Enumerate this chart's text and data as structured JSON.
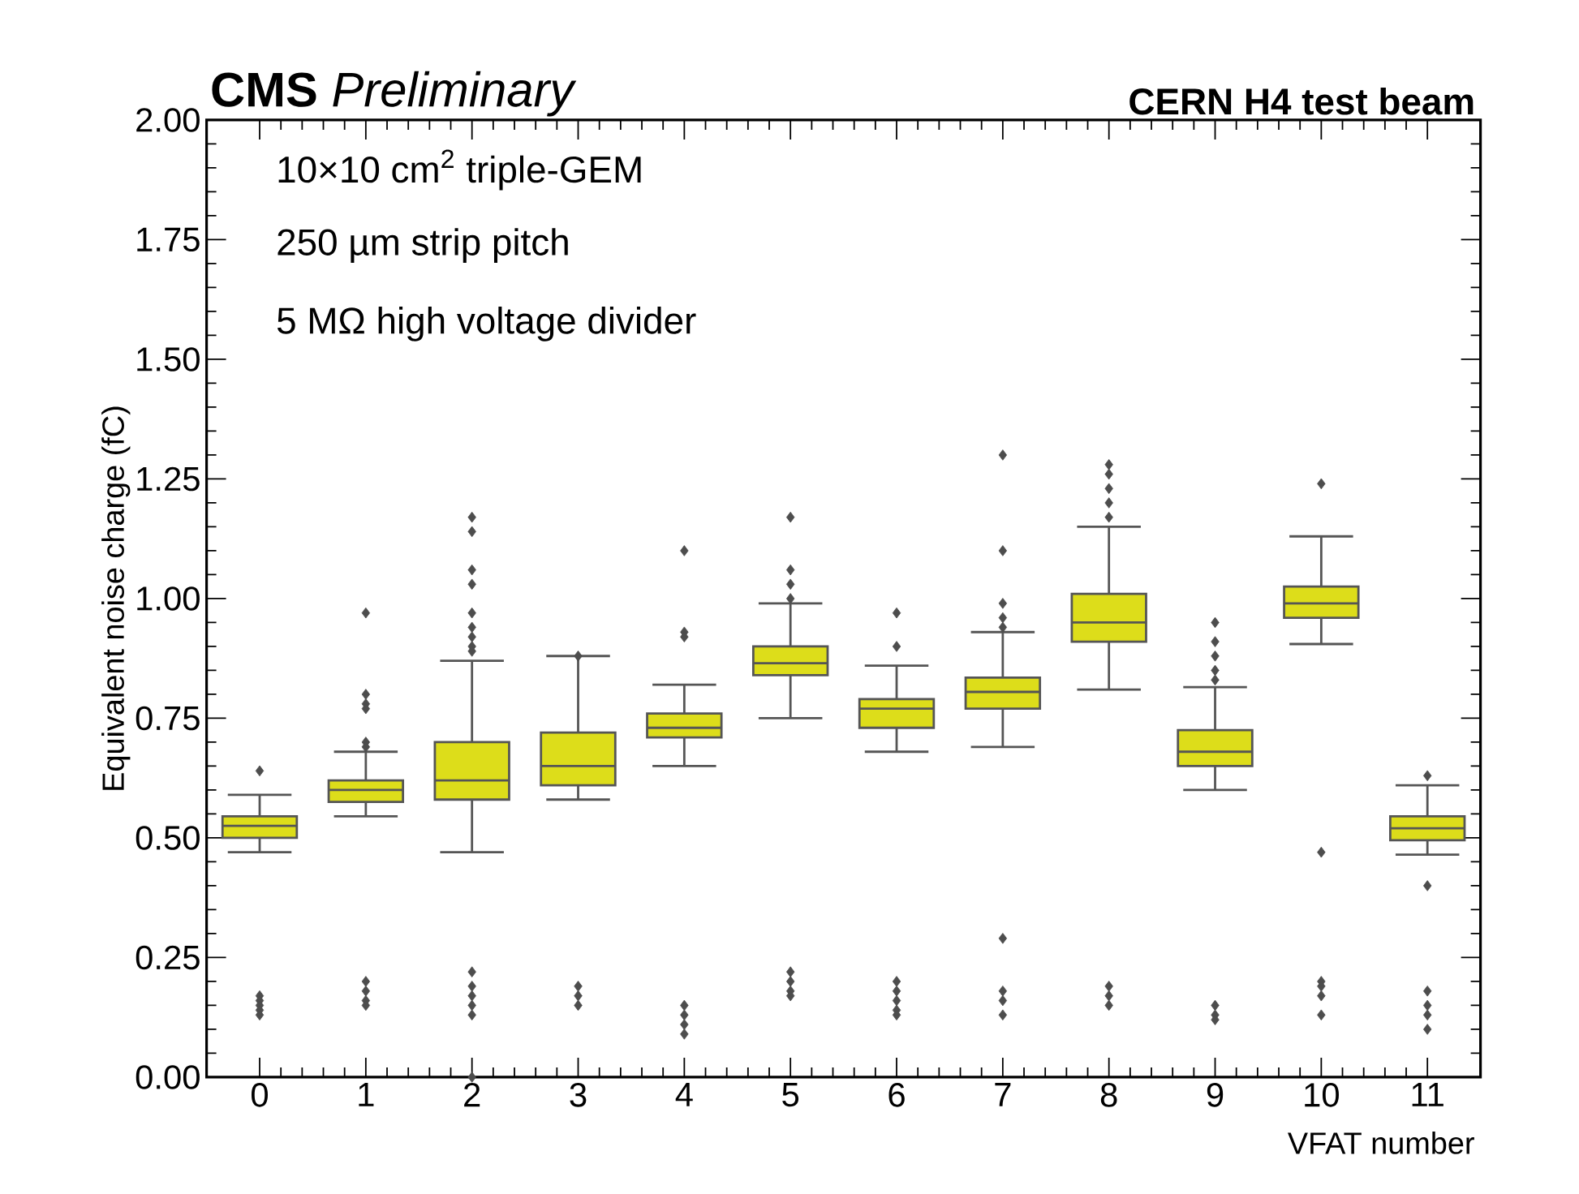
{
  "chart_data": {
    "type": "box",
    "title": "**CMS** *Preliminary*",
    "subtitle": "CERN H4 test beam",
    "xlabel": "VFAT number",
    "ylabel": "Equivalent noise charge (fC)",
    "annotations": [
      "10×10 cm$^{2}$ triple-GEM",
      "250 µm strip pitch",
      "5 MΩ high voltage divider"
    ],
    "categories": [
      "0",
      "1",
      "2",
      "3",
      "4",
      "5",
      "6",
      "7",
      "8",
      "9",
      "10",
      "11"
    ],
    "ylim": [
      0,
      2
    ],
    "yticks": [
      {
        "value": 0,
        "label": "0.00"
      },
      {
        "value": 0.25,
        "label": "0.25"
      },
      {
        "value": 0.5,
        "label": "0.50"
      },
      {
        "value": 0.75,
        "label": "0.75"
      },
      {
        "value": 1,
        "label": "1.00"
      },
      {
        "value": 1.25,
        "label": "1.25"
      },
      {
        "value": 1.5,
        "label": "1.50"
      },
      {
        "value": 1.75,
        "label": "1.75"
      },
      {
        "value": 2,
        "label": "2.00"
      }
    ],
    "marker": "diamond",
    "series": [
      {
        "color": "#dddd1a",
        "boxes": [
          {
            "low": 0.47,
            "q1": 0.5,
            "median": 0.525,
            "q3": 0.545,
            "high": 0.59,
            "outliers": [
              0.64,
              0.17,
              0.16,
              0.15,
              0.14,
              0.13
            ]
          },
          {
            "low": 0.545,
            "q1": 0.575,
            "median": 0.6,
            "q3": 0.62,
            "high": 0.68,
            "outliers": [
              0.97,
              0.8,
              0.78,
              0.77,
              0.7,
              0.69,
              0.2,
              0.18,
              0.16,
              0.15
            ]
          },
          {
            "low": 0.47,
            "q1": 0.58,
            "median": 0.62,
            "q3": 0.7,
            "high": 0.87,
            "outliers": [
              1.17,
              1.14,
              1.06,
              1.03,
              0.97,
              0.94,
              0.92,
              0.9,
              0.89,
              0.22,
              0.19,
              0.17,
              0.15,
              0.13,
              0.0
            ]
          },
          {
            "low": 0.58,
            "q1": 0.61,
            "median": 0.65,
            "q3": 0.72,
            "high": 0.88,
            "outliers": [
              0.88,
              0.19,
              0.17,
              0.15
            ]
          },
          {
            "low": 0.65,
            "q1": 0.71,
            "median": 0.73,
            "q3": 0.76,
            "high": 0.82,
            "outliers": [
              1.1,
              0.93,
              0.92,
              0.15,
              0.13,
              0.11,
              0.09
            ]
          },
          {
            "low": 0.75,
            "q1": 0.84,
            "median": 0.865,
            "q3": 0.9,
            "high": 0.99,
            "outliers": [
              1.17,
              1.06,
              1.03,
              1.0,
              0.22,
              0.2,
              0.18,
              0.17
            ]
          },
          {
            "low": 0.68,
            "q1": 0.73,
            "median": 0.77,
            "q3": 0.79,
            "high": 0.86,
            "outliers": [
              0.97,
              0.9,
              0.2,
              0.18,
              0.16,
              0.14,
              0.13
            ]
          },
          {
            "low": 0.69,
            "q1": 0.77,
            "median": 0.805,
            "q3": 0.835,
            "high": 0.93,
            "outliers": [
              1.3,
              1.1,
              0.99,
              0.96,
              0.94,
              0.29,
              0.18,
              0.16,
              0.13
            ]
          },
          {
            "low": 0.81,
            "q1": 0.91,
            "median": 0.95,
            "q3": 1.01,
            "high": 1.15,
            "outliers": [
              1.28,
              1.26,
              1.23,
              1.2,
              1.17,
              0.19,
              0.17,
              0.15
            ]
          },
          {
            "low": 0.6,
            "q1": 0.65,
            "median": 0.68,
            "q3": 0.725,
            "high": 0.815,
            "outliers": [
              0.95,
              0.91,
              0.88,
              0.85,
              0.83,
              0.15,
              0.13,
              0.12
            ]
          },
          {
            "low": 0.905,
            "q1": 0.96,
            "median": 0.99,
            "q3": 1.025,
            "high": 1.13,
            "outliers": [
              1.24,
              0.47,
              0.2,
              0.19,
              0.17,
              0.13
            ]
          },
          {
            "low": 0.465,
            "q1": 0.495,
            "median": 0.52,
            "q3": 0.545,
            "high": 0.61,
            "outliers": [
              0.63,
              0.4,
              0.18,
              0.15,
              0.13,
              0.1
            ]
          }
        ]
      }
    ]
  }
}
